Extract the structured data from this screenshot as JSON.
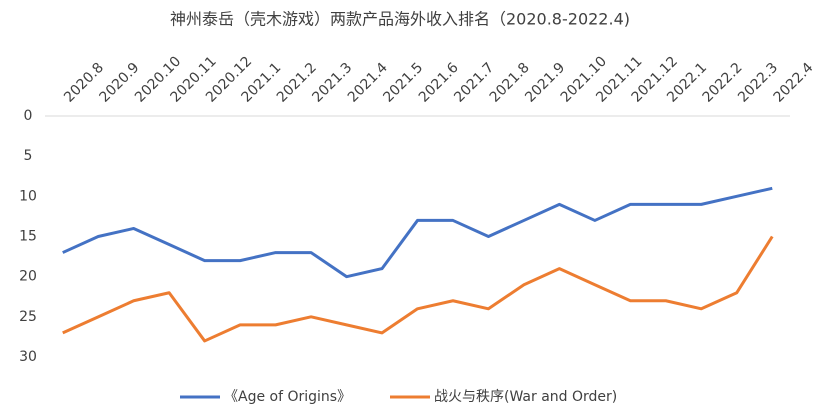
{
  "chart_data": {
    "type": "line",
    "title": "神州泰岳（壳木游戏）两款产品海外收入排名（2020.8-2022.4)",
    "categories": [
      "2020.8",
      "2020.9",
      "2020.10",
      "2020.11",
      "2020.12",
      "2021.1",
      "2021.2",
      "2021.3",
      "2021.4",
      "2021.5",
      "2021.6",
      "2021.7",
      "2021.8",
      "2021.9",
      "2021.10",
      "2021.11",
      "2021.12",
      "2022.1",
      "2022.2",
      "2022.3",
      "2022.4"
    ],
    "series": [
      {
        "name": "《Age of Origins》",
        "color": "#4472c4",
        "values": [
          17,
          15,
          14,
          16,
          18,
          18,
          17,
          17,
          20,
          19,
          13,
          13,
          15,
          13,
          11,
          13,
          11,
          11,
          11,
          10,
          9
        ]
      },
      {
        "name": "战火与秩序(War and Order)",
        "color": "#ed7d31",
        "values": [
          27,
          25,
          23,
          22,
          28,
          26,
          26,
          25,
          26,
          27,
          24,
          23,
          24,
          21,
          19,
          21,
          23,
          23,
          24,
          22,
          15
        ]
      }
    ],
    "ylim": [
      0,
      30
    ],
    "yticks": [
      0,
      5,
      10,
      15,
      20,
      25,
      30
    ],
    "yreverse": true,
    "legend": "bottom"
  }
}
